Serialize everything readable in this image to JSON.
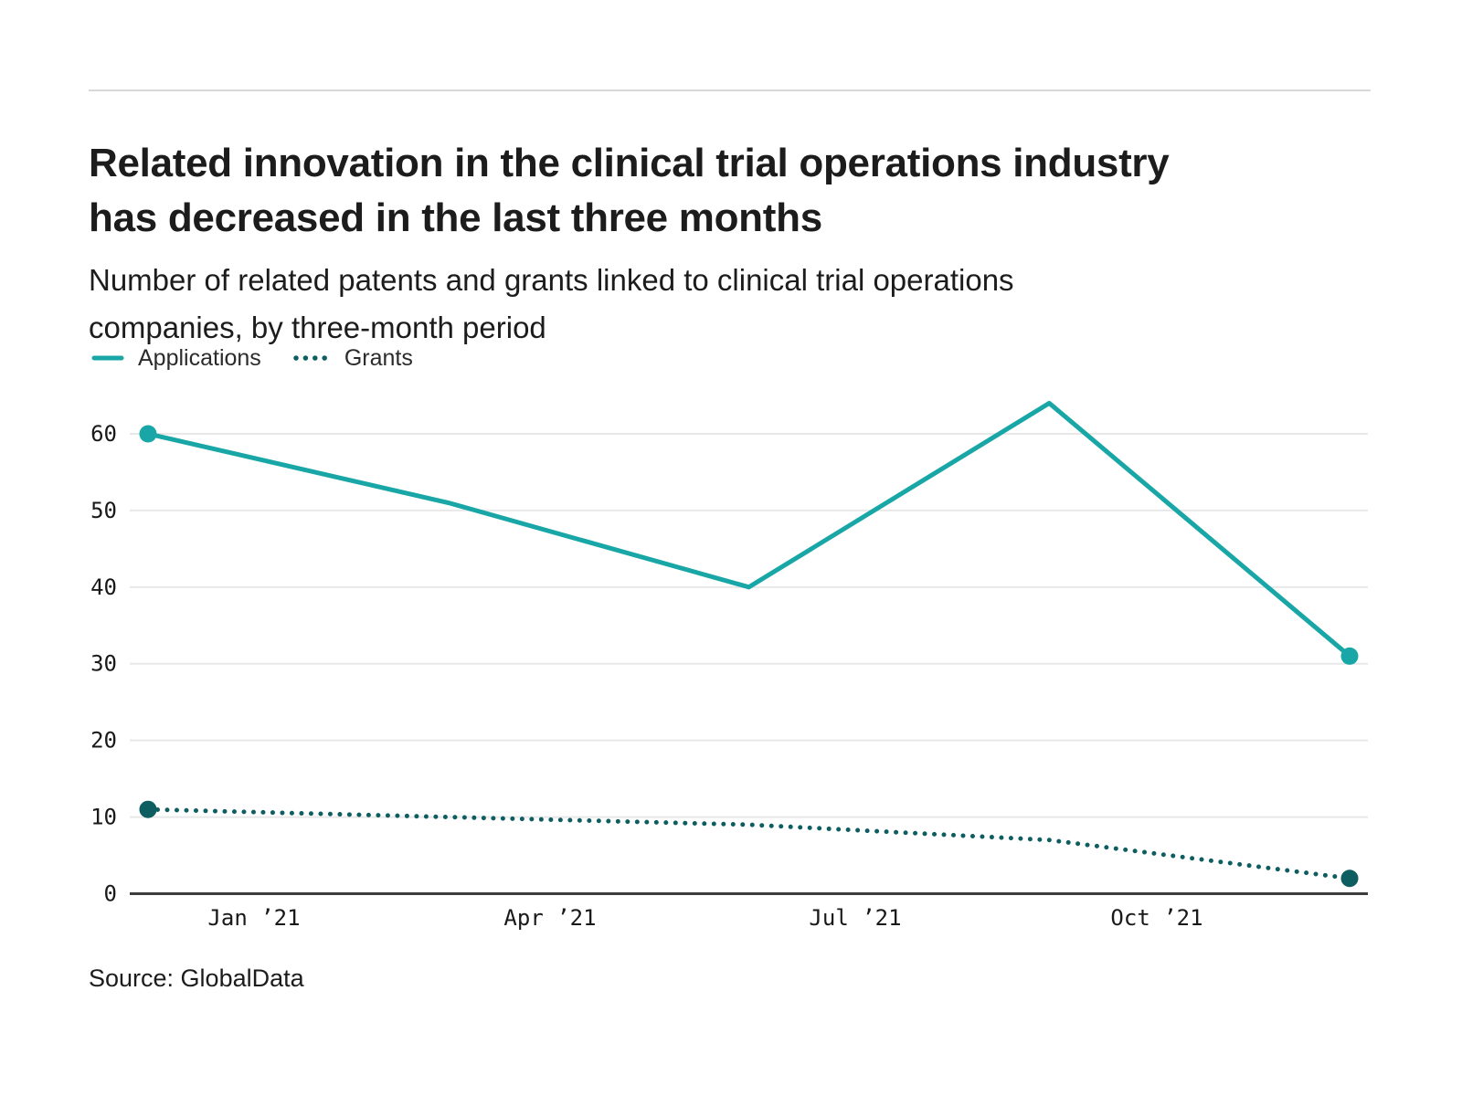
{
  "header": {
    "title_lines": [
      "Related innovation in the clinical trial operations industry",
      "has decreased in the last three months"
    ],
    "subtitle_lines": [
      "Number of related patents and grants linked to clinical trial operations",
      "companies, by three-month period"
    ]
  },
  "legend": [
    {
      "label": "Applications",
      "style": "solid",
      "color": "#18a6a6"
    },
    {
      "label": "Grants",
      "style": "dotted",
      "color": "#0e5d60"
    }
  ],
  "source": "Source: GlobalData",
  "colors": {
    "applications": "#18a6a6",
    "grants": "#0e5d60",
    "gridline": "#e8e8e8",
    "axis": "#3d3d3d",
    "tick_text": "#191919",
    "divider": "#d8d8d8"
  },
  "chart_data": {
    "type": "line",
    "title": "Related innovation in the clinical trial operations industry has decreased in the last three months",
    "subtitle": "Number of related patents and grants linked to clinical trial operations companies, by three-month period",
    "x_tick_labels": [
      "Jan ’21",
      "Apr ’21",
      "Jul ’21",
      "Oct ’21"
    ],
    "y_ticks": [
      0,
      10,
      20,
      30,
      40,
      50,
      60
    ],
    "ylim": [
      0,
      64
    ],
    "grid": "horizontal",
    "legend_position": "top-left",
    "points_layout": "5 evenly spaced three-month periods spanning the axis",
    "series": [
      {
        "name": "Applications",
        "style": "solid",
        "color": "#18a6a6",
        "endpoint_markers": true,
        "values": [
          60,
          51,
          40,
          64,
          31
        ]
      },
      {
        "name": "Grants",
        "style": "dotted",
        "color": "#0e5d60",
        "endpoint_markers": true,
        "values": [
          11,
          10,
          9,
          7,
          2
        ]
      }
    ]
  }
}
